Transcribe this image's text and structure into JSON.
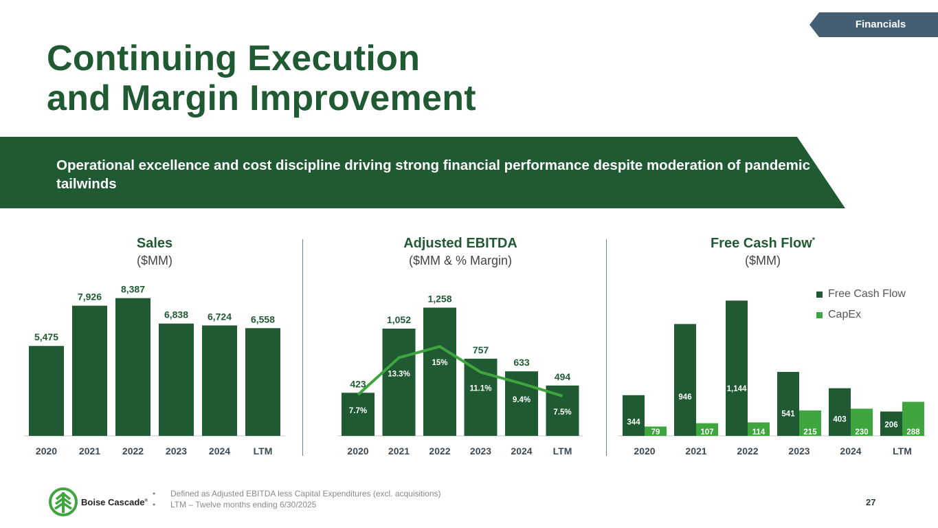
{
  "section_tag": "Financials",
  "title_lines": [
    "Continuing Execution",
    "and Margin Improvement"
  ],
  "banner_text": "Operational excellence and cost discipline driving strong financial performance despite moderation of pandemic tailwinds",
  "colors": {
    "dark_green": "#1f5a33",
    "light_green": "#3fa53f",
    "tag_blue": "#455f72",
    "axis_text": "#3b4a55"
  },
  "chart_data": [
    {
      "type": "bar",
      "title": "Sales",
      "subtitle": "($MM)",
      "categories": [
        "2020",
        "2021",
        "2022",
        "2023",
        "2024",
        "LTM"
      ],
      "values": [
        5475,
        7926,
        8387,
        6838,
        6724,
        6558
      ],
      "labels": [
        "5,475",
        "7,926",
        "8,387",
        "6,838",
        "6,724",
        "6,558"
      ],
      "ylim": [
        0,
        9000
      ],
      "grid": false
    },
    {
      "type": "bar",
      "title": "Adjusted EBITDA",
      "subtitle": "($MM & % Margin)",
      "categories": [
        "2020",
        "2021",
        "2022",
        "2023",
        "2024",
        "LTM"
      ],
      "values": [
        423,
        1052,
        1258,
        757,
        633,
        494
      ],
      "labels": [
        "423",
        "1,052",
        "1,258",
        "757",
        "633",
        "494"
      ],
      "margin_series": {
        "name": "% Margin",
        "type": "line",
        "values": [
          7.7,
          13.3,
          15.0,
          11.1,
          9.4,
          7.5
        ],
        "labels": [
          "7.7%",
          "13.3%",
          "15%",
          "11.1%",
          "9.4%",
          "7.5%"
        ]
      },
      "ylim": [
        0,
        1450
      ],
      "grid": false
    },
    {
      "type": "bar",
      "title": "Free Cash Flow",
      "title_marker": "*",
      "subtitle": "($MM)",
      "categories": [
        "2020",
        "2021",
        "2022",
        "2023",
        "2024",
        "LTM"
      ],
      "series": [
        {
          "name": "Free Cash Flow",
          "values": [
            344,
            946,
            1144,
            541,
            403,
            206
          ],
          "labels": [
            "344",
            "946",
            "1,144",
            "541",
            "403",
            "206"
          ]
        },
        {
          "name": "CapEx",
          "values": [
            79,
            107,
            114,
            215,
            230,
            288
          ],
          "labels": [
            "79",
            "107",
            "114",
            "215",
            "230",
            "288"
          ]
        }
      ],
      "legend_position": "top-right",
      "ylim": [
        0,
        1250
      ],
      "grid": false
    }
  ],
  "footer": {
    "logo_text": "Boise Cascade",
    "notes": [
      "Defined as Adjusted EBITDA less Capital Expenditures (excl. acquisitions)",
      "LTM – Twelve months ending 6/30/2025"
    ],
    "bullet": "•",
    "page_number": "27"
  }
}
